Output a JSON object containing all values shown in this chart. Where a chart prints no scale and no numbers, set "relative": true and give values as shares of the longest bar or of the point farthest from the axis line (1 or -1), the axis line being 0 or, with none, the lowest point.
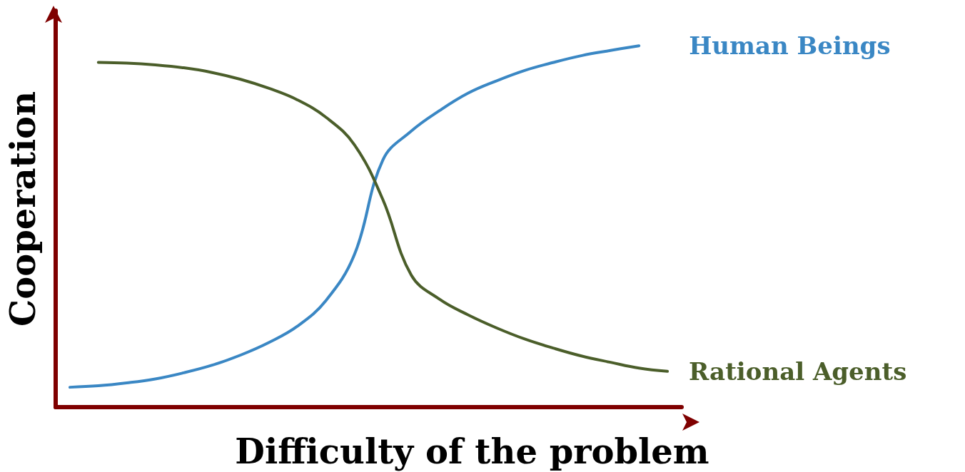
{
  "chart_data": {
    "type": "line",
    "relative": true,
    "xlabel": "Difficulty of the problem",
    "ylabel": "Cooperation",
    "categories": [
      null,
      null,
      null,
      null,
      null,
      null,
      null,
      null,
      null,
      null,
      null,
      null,
      null,
      null,
      null,
      null,
      null,
      null,
      null,
      null,
      null,
      null
    ],
    "series": [
      {
        "name": "Human Beings",
        "color": "#3a87c4",
        "values": [
          0.055,
          0.059,
          0.067,
          0.078,
          0.095,
          0.116,
          0.144,
          0.179,
          0.224,
          0.295,
          0.422,
          0.684,
          0.764,
          0.821,
          0.869,
          0.903,
          0.932,
          0.954,
          0.973,
          0.987,
          1,
          null
        ]
      },
      {
        "name": "Rational Agents",
        "color": "#4b5e2a",
        "values": [
          null,
          0.954,
          0.952,
          0.947,
          0.939,
          0.926,
          0.907,
          0.882,
          0.85,
          0.802,
          0.726,
          0.574,
          0.365,
          0.298,
          0.255,
          0.219,
          0.188,
          0.163,
          0.141,
          0.124,
          0.108,
          0.099
        ]
      }
    ],
    "legend": false,
    "grid": false,
    "marker": "none",
    "line_style": "solid"
  }
}
